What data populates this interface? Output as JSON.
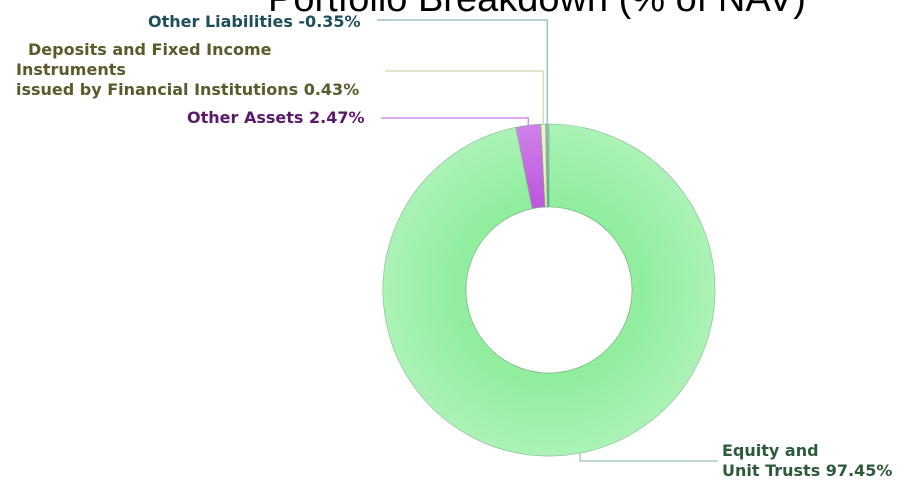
{
  "chart_data": {
    "type": "pie",
    "donut": true,
    "title": "Portfolio Breakdown (% of NAV)",
    "slices": [
      {
        "label": "Other Liabilities -0.35%",
        "lines": [
          "Other Liabilities -0.35%"
        ],
        "value": -0.35,
        "color": "#6aa6a8",
        "label_color": "#1d4e5b"
      },
      {
        "label": "Deposits and Fixed Income Instruments issued by Financial Institutions 0.43%",
        "lines": [
          "Deposits and Fixed Income",
          "Instruments",
          "issued by Financial Institutions 0.43%"
        ],
        "value": 0.43,
        "color": "#e8f2a8",
        "label_color": "#5a5a2a"
      },
      {
        "label": "Other Assets 2.47%",
        "lines": [
          "Other Assets 2.47%"
        ],
        "value": 2.47,
        "color": "#c058e0",
        "label_color": "#5a1a6a"
      },
      {
        "label": "Equity and Unit Trusts 97.45%",
        "lines": [
          "Equity and",
          "Unit Trusts 97.45%"
        ],
        "value": 97.45,
        "color": "#90ee9e",
        "label_color": "#2d5a3a"
      }
    ]
  }
}
